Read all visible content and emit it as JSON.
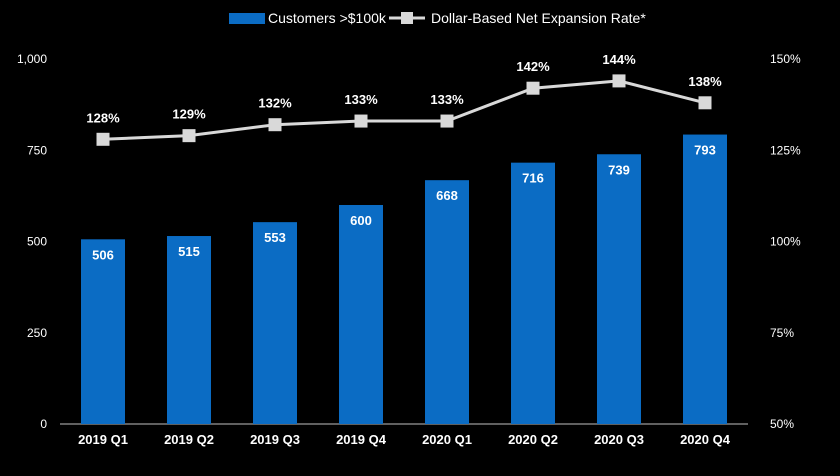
{
  "chart_data": {
    "type": "bar",
    "categories": [
      "2019 Q1",
      "2019 Q2",
      "2019 Q3",
      "2019 Q4",
      "2020 Q1",
      "2020 Q2",
      "2020 Q3",
      "2020 Q4"
    ],
    "series": [
      {
        "name": "Customers >$100k",
        "type": "bar",
        "axis": "left",
        "values": [
          506,
          515,
          553,
          600,
          668,
          716,
          739,
          793
        ],
        "labels": [
          "506",
          "515",
          "553",
          "600",
          "668",
          "716",
          "739",
          "793"
        ],
        "color": "#0b6cc4"
      },
      {
        "name": "Dollar-Based Net Expansion Rate*",
        "type": "line",
        "axis": "right",
        "values": [
          128,
          129,
          132,
          133,
          133,
          142,
          144,
          138
        ],
        "labels": [
          "128%",
          "129%",
          "132%",
          "133%",
          "133%",
          "142%",
          "144%",
          "138%"
        ],
        "color": "#d9d9d9"
      }
    ],
    "y_left": {
      "ylim": [
        0,
        1000
      ],
      "ticks": [
        0,
        250,
        500,
        750,
        1000
      ],
      "tick_labels": [
        "0",
        "250",
        "500",
        "750",
        "1,000"
      ]
    },
    "y_right": {
      "ylim": [
        50,
        150
      ],
      "ticks": [
        50,
        75,
        100,
        125,
        150
      ],
      "tick_labels": [
        "50%",
        "75%",
        "100%",
        "125%",
        "150%"
      ]
    },
    "grid": false,
    "legend": "top-center",
    "background": "#000000"
  }
}
